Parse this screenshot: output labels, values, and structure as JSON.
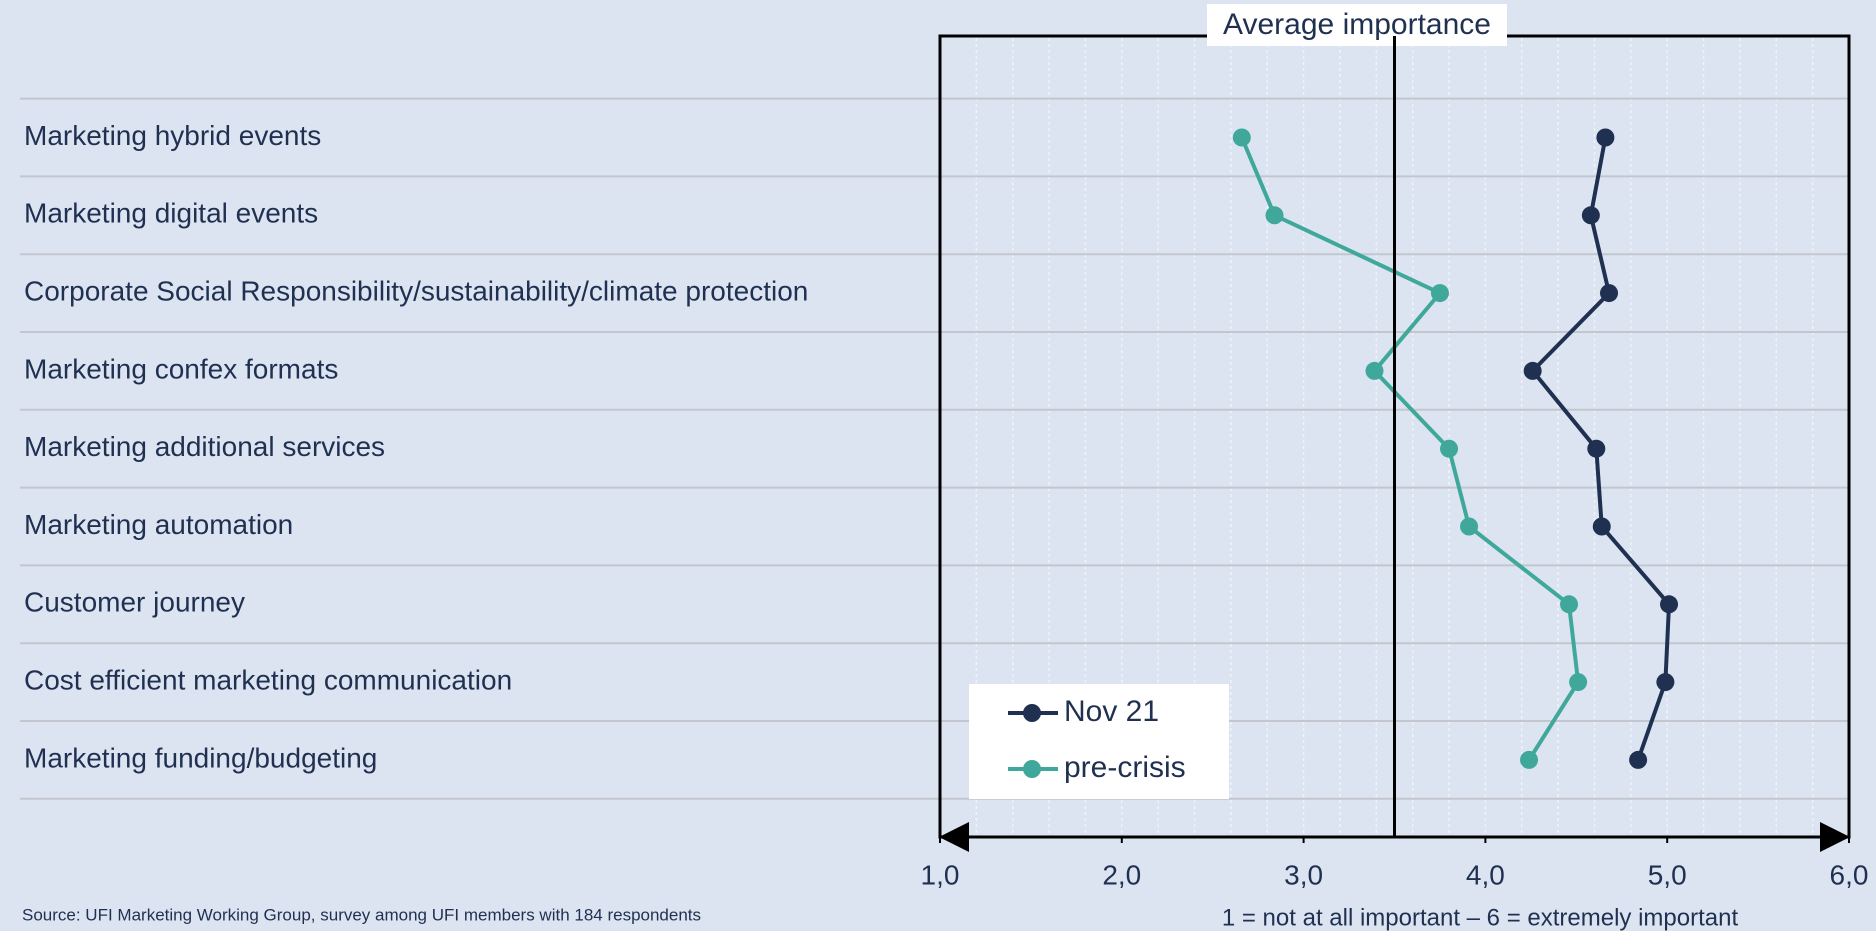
{
  "chart_data": {
    "type": "line",
    "title": "Average importance",
    "categories": [
      "Marketing hybrid events",
      "Marketing digital events",
      "Corporate Social Responsibility/sustainability/climate protection",
      "Marketing confex formats",
      "Marketing additional services",
      "Marketing automation",
      "Customer journey",
      "Cost efficient marketing communication",
      "Marketing funding/budgeting"
    ],
    "series": [
      {
        "name": "Nov 21",
        "color": "#1f3050",
        "values": [
          4.66,
          4.58,
          4.68,
          4.26,
          4.61,
          4.64,
          5.01,
          4.99,
          4.84
        ]
      },
      {
        "name": "pre-crisis",
        "color": "#3fa89a",
        "values": [
          2.66,
          2.84,
          3.75,
          3.39,
          3.8,
          3.91,
          4.46,
          4.51,
          4.24
        ]
      }
    ],
    "xlim": [
      1,
      6
    ],
    "xticks": [
      {
        "value": 1,
        "label": "1,0"
      },
      {
        "value": 2,
        "label": "2,0"
      },
      {
        "value": 3,
        "label": "3,0"
      },
      {
        "value": 4,
        "label": "4,0"
      },
      {
        "value": 5,
        "label": "5,0"
      },
      {
        "value": 6,
        "label": "6,0"
      }
    ],
    "minor_grid_step": 0.2,
    "reference_line": 3.5,
    "x_axis_note": "1 = not at all important – 6 = extremely important",
    "source": "Source: UFI Marketing Working Group, survey among UFI members with 184 respondents",
    "legend": "bottom-left"
  }
}
